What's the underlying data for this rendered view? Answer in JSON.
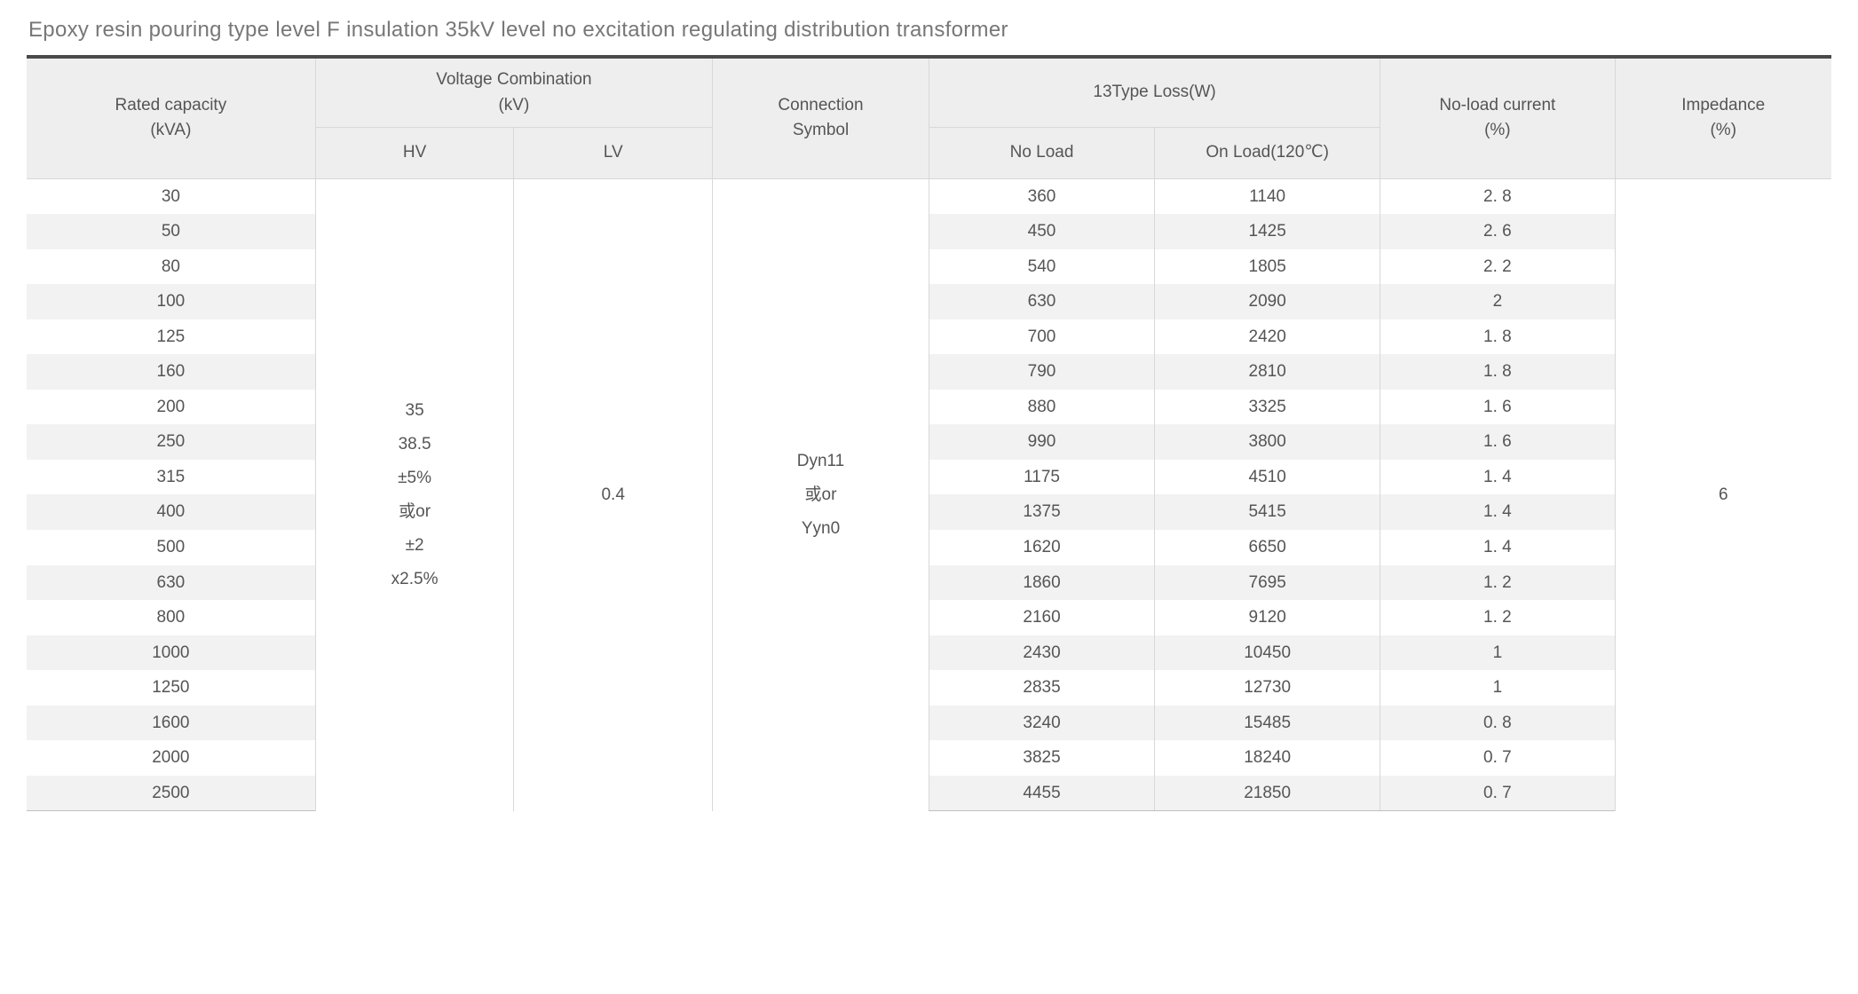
{
  "title": "Epoxy resin pouring type level F insulation 35kV level no excitation regulating distribution transformer",
  "headers": {
    "rated_capacity": "Rated capacity\n(kVA)",
    "voltage_combination": "Voltage Combination\n(kV)",
    "hv": "HV",
    "lv": "LV",
    "connection_symbol": "Connection\nSymbol",
    "type_loss": "13Type Loss(W)",
    "no_load": "No Load",
    "on_load": "On Load(120℃)",
    "no_load_current": "No-load current\n(%)",
    "impedance": "Impedance\n(%)"
  },
  "merged": {
    "hv_lines": [
      "35",
      "38.5",
      "±5%",
      "或or",
      "±2",
      "x2.5%"
    ],
    "lv": "0.4",
    "connection_lines": [
      "Dyn11",
      "或or",
      "Yyn0"
    ],
    "impedance": "6"
  },
  "rows": [
    {
      "cap": "30",
      "nl": "360",
      "ol": "1140",
      "cur": "2. 8"
    },
    {
      "cap": "50",
      "nl": "450",
      "ol": "1425",
      "cur": "2. 6"
    },
    {
      "cap": "80",
      "nl": "540",
      "ol": "1805",
      "cur": "2. 2"
    },
    {
      "cap": "100",
      "nl": "630",
      "ol": "2090",
      "cur": "2"
    },
    {
      "cap": "125",
      "nl": "700",
      "ol": "2420",
      "cur": "1. 8"
    },
    {
      "cap": "160",
      "nl": "790",
      "ol": "2810",
      "cur": "1. 8"
    },
    {
      "cap": "200",
      "nl": "880",
      "ol": "3325",
      "cur": "1. 6"
    },
    {
      "cap": "250",
      "nl": "990",
      "ol": "3800",
      "cur": "1. 6"
    },
    {
      "cap": "315",
      "nl": "1175",
      "ol": "4510",
      "cur": "1. 4"
    },
    {
      "cap": "400",
      "nl": "1375",
      "ol": "5415",
      "cur": "1. 4"
    },
    {
      "cap": "500",
      "nl": "1620",
      "ol": "6650",
      "cur": "1. 4"
    },
    {
      "cap": "630",
      "nl": "1860",
      "ol": "7695",
      "cur": "1. 2"
    },
    {
      "cap": "800",
      "nl": "2160",
      "ol": "9120",
      "cur": "1. 2"
    },
    {
      "cap": "1000",
      "nl": "2430",
      "ol": "10450",
      "cur": "1"
    },
    {
      "cap": "1250",
      "nl": "2835",
      "ol": "12730",
      "cur": "1"
    },
    {
      "cap": "1600",
      "nl": "3240",
      "ol": "15485",
      "cur": "0. 8"
    },
    {
      "cap": "2000",
      "nl": "3825",
      "ol": "18240",
      "cur": "0. 7"
    },
    {
      "cap": "2500",
      "nl": "4455",
      "ol": "21850",
      "cur": "0. 7"
    }
  ],
  "style": {
    "header_bg": "#eeeeee",
    "stripe_bg": "#f2f2f2",
    "border_color": "#d8d8d8",
    "top_border_color": "#4a4a4a",
    "text_color": "#555555",
    "title_color": "#777777",
    "font_size_body": 19,
    "font_size_title": 24
  }
}
